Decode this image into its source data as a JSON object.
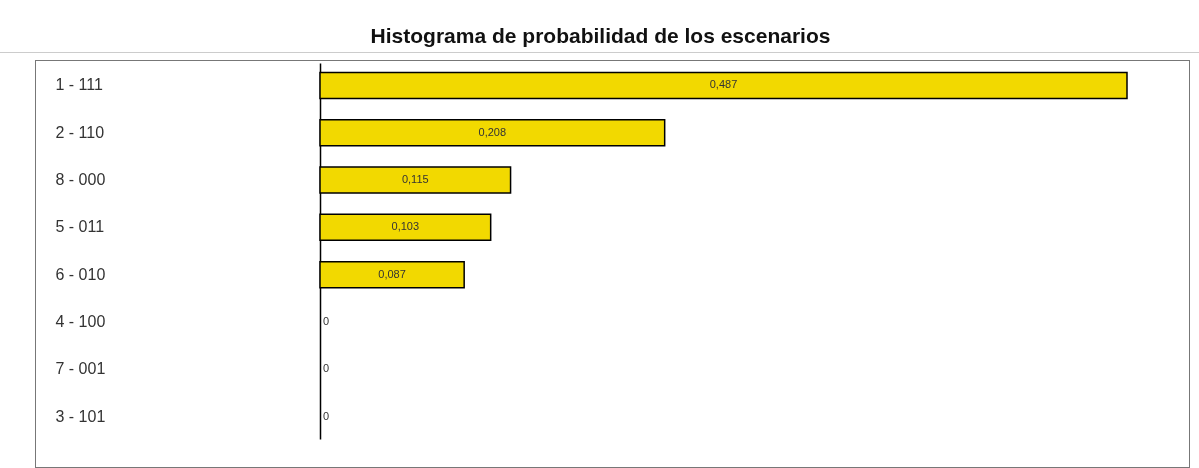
{
  "chart_data": {
    "type": "bar",
    "orientation": "horizontal",
    "title": "Histograma de probabilidad de los escenarios",
    "categories": [
      "1 - 111",
      "2 - 110",
      "8 - 000",
      "5 - 011",
      "6 - 010",
      "4 - 100",
      "7 - 001",
      "3 - 101"
    ],
    "values": [
      0.487,
      0.208,
      0.115,
      0.103,
      0.087,
      0,
      0,
      0
    ],
    "value_labels": [
      "0,487",
      "0,208",
      "0,115",
      "0,103",
      "0,087",
      "0",
      "0",
      "0"
    ],
    "color": "#f2d900",
    "grid": false
  }
}
